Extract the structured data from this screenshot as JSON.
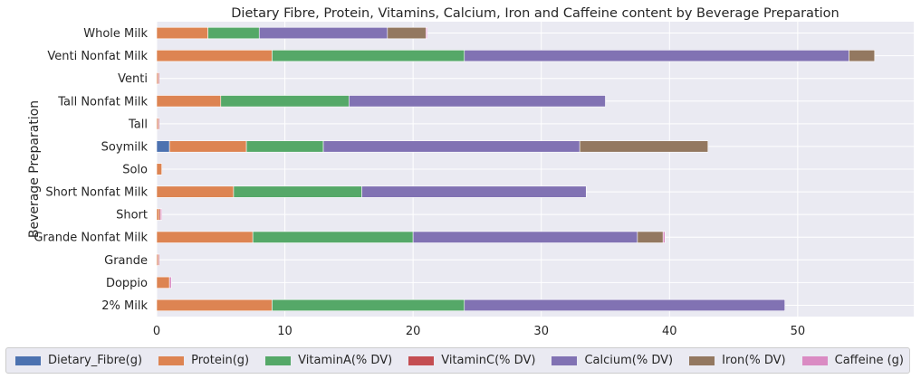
{
  "chart_data": {
    "type": "bar",
    "orientation": "horizontal",
    "stacked": true,
    "title": "Dietary Fibre, Protein, Vitamins, Calcium, Iron and Caffeine content by Beverage Preparation",
    "xlabel": "",
    "ylabel": "Beverage Preparation",
    "xlim": [
      0,
      59
    ],
    "xticks": [
      0,
      10,
      20,
      30,
      40,
      50
    ],
    "grid": true,
    "legend_position": "bottom",
    "categories": [
      "2% Milk",
      "Doppio",
      "Grande",
      "Grande Nonfat Milk",
      "Short",
      "Short Nonfat Milk",
      "Solo",
      "Soymilk",
      "Tall",
      "Tall Nonfat Milk",
      "Venti",
      "Venti Nonfat Milk",
      "Whole Milk"
    ],
    "series": [
      {
        "name": "Dietary_Fibre(g)",
        "color": "#4c72b0",
        "values": [
          0,
          0,
          0,
          0,
          0,
          0,
          0,
          1,
          0,
          0,
          0,
          0,
          0
        ]
      },
      {
        "name": "Protein(g)",
        "color": "#dd8452",
        "values": [
          9,
          1,
          0.1,
          7.5,
          0.2,
          6,
          0.4,
          6,
          0.1,
          5,
          0.1,
          9,
          4
        ]
      },
      {
        "name": "VitaminA(% DV)",
        "color": "#55a868",
        "values": [
          15,
          0,
          0,
          12.5,
          0,
          10,
          0,
          6,
          0,
          10,
          0,
          15,
          4
        ]
      },
      {
        "name": "VitaminC(% DV)",
        "color": "#c44e52",
        "values": [
          0,
          0,
          0.1,
          0,
          0.1,
          0,
          0,
          0,
          0.1,
          0,
          0.1,
          0,
          0
        ]
      },
      {
        "name": "Calcium(% DV)",
        "color": "#8172b3",
        "values": [
          25,
          0,
          0,
          17.5,
          0,
          17.5,
          0,
          20,
          0,
          20,
          0,
          30,
          10
        ]
      },
      {
        "name": "Iron(% DV)",
        "color": "#937860",
        "values": [
          0,
          0,
          0,
          2,
          0,
          0,
          0,
          10,
          0,
          0,
          0,
          2,
          3
        ]
      },
      {
        "name": "Caffeine (g)",
        "color": "#da8bc3",
        "values": [
          0,
          0.15,
          0,
          0.15,
          0.1,
          0,
          0,
          0,
          0,
          0,
          0,
          0,
          0.1
        ]
      }
    ]
  }
}
